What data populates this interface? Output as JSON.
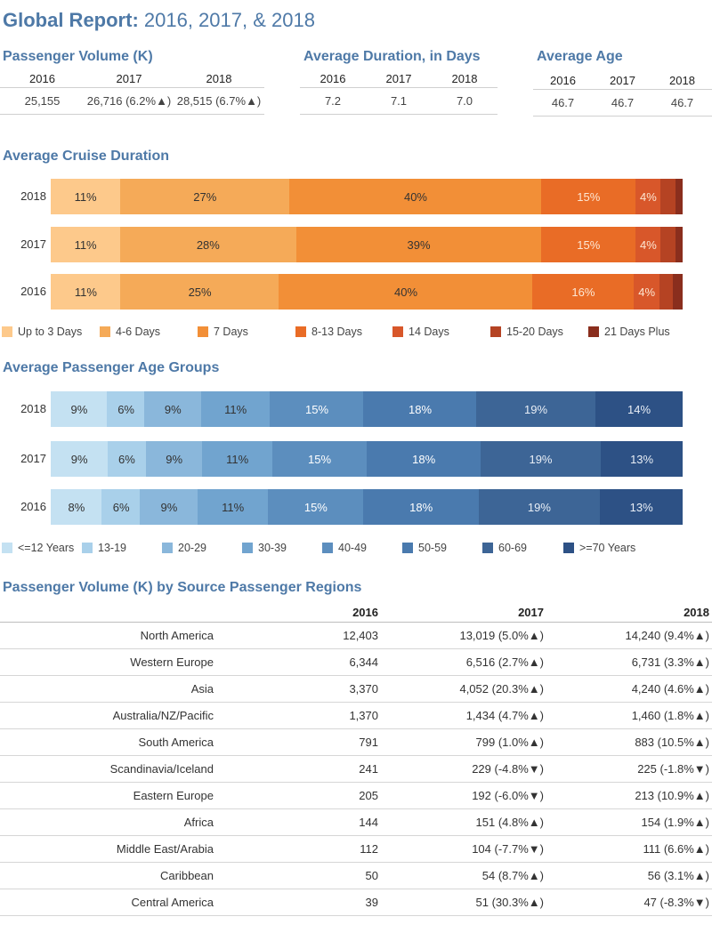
{
  "header": {
    "title_bold": "Global Report:",
    "title_rest": " 2016, 2017, & 2018"
  },
  "kpis": {
    "passenger_volume": {
      "title": "Passenger Volume (K)",
      "years": [
        "2016",
        "2017",
        "2018"
      ],
      "values": [
        "25,155",
        "26,716 (6.2%▲)",
        "28,515 (6.7%▲)"
      ]
    },
    "avg_duration": {
      "title": "Average Duration, in Days",
      "years": [
        "2016",
        "2017",
        "2018"
      ],
      "values": [
        "7.2",
        "7.1",
        "7.0"
      ]
    },
    "avg_age": {
      "title": "Average Age",
      "years": [
        "2016",
        "2017",
        "2018"
      ],
      "values": [
        "46.7",
        "46.7",
        "46.7"
      ]
    }
  },
  "colors": {
    "duration": [
      "#fdc98b",
      "#f5aa58",
      "#f28f37",
      "#e96c26",
      "#d8572a",
      "#b54323",
      "#8a2e1d"
    ],
    "age": [
      "#c4e1f2",
      "#a9d0ea",
      "#8ab7db",
      "#71a4cf",
      "#5c8ebe",
      "#4a7aae",
      "#3d6596",
      "#2d5185"
    ]
  },
  "chart_data": [
    {
      "type": "bar",
      "orientation": "horizontal",
      "stacked": "100%",
      "title": "Average Cruise Duration",
      "categories": [
        "2018",
        "2017",
        "2016"
      ],
      "series": [
        {
          "name": "Up to 3 Days",
          "values": [
            11,
            11,
            11
          ],
          "labels": [
            "11%",
            "11%",
            "11%"
          ]
        },
        {
          "name": "4-6 Days",
          "values": [
            27,
            28,
            25
          ],
          "labels": [
            "27%",
            "28%",
            "25%"
          ]
        },
        {
          "name": "7 Days",
          "values": [
            40,
            39,
            40
          ],
          "labels": [
            "40%",
            "39%",
            "40%"
          ]
        },
        {
          "name": "8-13 Days",
          "values": [
            15,
            15,
            16
          ],
          "labels": [
            "15%",
            "15%",
            "16%"
          ]
        },
        {
          "name": "14 Days",
          "values": [
            4,
            4,
            4
          ],
          "labels": [
            "4%",
            "4%",
            "4%"
          ]
        },
        {
          "name": "15-20 Days",
          "values": [
            2.3,
            2.3,
            2.2
          ],
          "labels": [
            "",
            "",
            ""
          ]
        },
        {
          "name": "21 Days Plus",
          "values": [
            1.2,
            1.2,
            1.5
          ],
          "labels": [
            "",
            "",
            ""
          ]
        }
      ],
      "legend_position": "bottom"
    },
    {
      "type": "bar",
      "orientation": "horizontal",
      "stacked": "100%",
      "title": "Average Passenger Age Groups",
      "categories": [
        "2018",
        "2017",
        "2016"
      ],
      "series": [
        {
          "name": "<=12 Years",
          "values": [
            9,
            9,
            8
          ],
          "labels": [
            "9%",
            "9%",
            "8%"
          ]
        },
        {
          "name": "13-19",
          "values": [
            6,
            6,
            6
          ],
          "labels": [
            "6%",
            "6%",
            "6%"
          ]
        },
        {
          "name": "20-29",
          "values": [
            9,
            9,
            9
          ],
          "labels": [
            "9%",
            "9%",
            "9%"
          ]
        },
        {
          "name": "30-39",
          "values": [
            11,
            11,
            11
          ],
          "labels": [
            "11%",
            "11%",
            "11%"
          ]
        },
        {
          "name": "40-49",
          "values": [
            15,
            15,
            15
          ],
          "labels": [
            "15%",
            "15%",
            "15%"
          ]
        },
        {
          "name": "50-59",
          "values": [
            18,
            18,
            18
          ],
          "labels": [
            "18%",
            "18%",
            "18%"
          ]
        },
        {
          "name": "60-69",
          "values": [
            19,
            19,
            19
          ],
          "labels": [
            "19%",
            "19%",
            "19%"
          ]
        },
        {
          "name": ">=70 Years",
          "values": [
            14,
            13,
            13
          ],
          "labels": [
            "14%",
            "13%",
            "13%"
          ]
        }
      ],
      "legend_position": "bottom"
    },
    {
      "type": "table",
      "title": "Passenger Volume (K) by Source Passenger Regions",
      "columns": [
        "",
        "2016",
        "2017",
        "2018"
      ],
      "rows": [
        [
          "North America",
          "12,403",
          "13,019 (5.0%▲)",
          "14,240 (9.4%▲)"
        ],
        [
          "Western Europe",
          "6,344",
          "6,516 (2.7%▲)",
          "6,731 (3.3%▲)"
        ],
        [
          "Asia",
          "3,370",
          "4,052 (20.3%▲)",
          "4,240 (4.6%▲)"
        ],
        [
          "Australia/NZ/Pacific",
          "1,370",
          "1,434 (4.7%▲)",
          "1,460 (1.8%▲)"
        ],
        [
          "South America",
          "791",
          "799 (1.0%▲)",
          "883 (10.5%▲)"
        ],
        [
          "Scandinavia/Iceland",
          "241",
          "229 (-4.8%▼)",
          "225 (-1.8%▼)"
        ],
        [
          "Eastern Europe",
          "205",
          "192 (-6.0%▼)",
          "213 (10.9%▲)"
        ],
        [
          "Africa",
          "144",
          "151 (4.8%▲)",
          "154 (1.9%▲)"
        ],
        [
          "Middle East/Arabia",
          "112",
          "104 (-7.7%▼)",
          "111 (6.6%▲)"
        ],
        [
          "Caribbean",
          "50",
          "54 (8.7%▲)",
          "56 (3.1%▲)"
        ],
        [
          "Central America",
          "39",
          "51 (30.3%▲)",
          "47 (-8.3%▼)"
        ]
      ]
    }
  ]
}
